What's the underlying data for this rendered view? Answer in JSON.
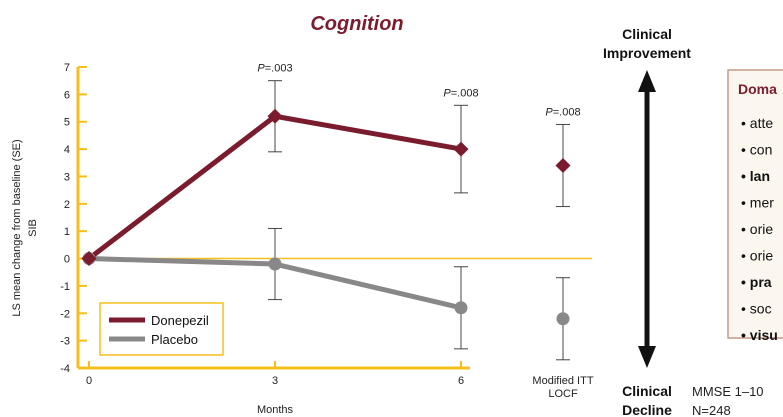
{
  "chart_data": {
    "type": "line",
    "title": "Cognition",
    "ylabel": "LS mean change from baseline (SE) SIB",
    "ylabel_lines": [
      "LS mean change from baseline (SE)",
      "SIB"
    ],
    "xlabel": "Months",
    "ylim": [
      -4,
      7
    ],
    "yticks": [
      -4,
      -3,
      -2,
      -1,
      0,
      1,
      2,
      3,
      4,
      5,
      6,
      7
    ],
    "x_categories": [
      "0",
      "3",
      "6"
    ],
    "extra_category": [
      "Modified ITT",
      "LOCF"
    ],
    "series": [
      {
        "name": "Donepezil",
        "color": "#7b1c2e",
        "marker": "diamond",
        "points": [
          {
            "x": "0",
            "y": 0
          },
          {
            "x": "3",
            "y": 5.2,
            "err_low": 3.9,
            "err_high": 6.5
          },
          {
            "x": "6",
            "y": 4.0,
            "err_low": 2.4,
            "err_high": 5.6
          }
        ],
        "locf": {
          "y": 3.4,
          "err_low": 1.9,
          "err_high": 4.9
        }
      },
      {
        "name": "Placebo",
        "color": "#888888",
        "marker": "circle",
        "points": [
          {
            "x": "0",
            "y": 0
          },
          {
            "x": "3",
            "y": -0.2,
            "err_low": -1.5,
            "err_high": 1.1
          },
          {
            "x": "6",
            "y": -1.8,
            "err_low": -3.3,
            "err_high": -0.3
          }
        ],
        "locf": {
          "y": -2.2,
          "err_low": -3.7,
          "err_high": -0.7
        }
      }
    ],
    "annotations": [
      {
        "at": "3",
        "prefix": "P",
        "text": "=.003"
      },
      {
        "at": "6",
        "prefix": "P",
        "text": "=.008"
      },
      {
        "at": "locf",
        "prefix": "P",
        "text": "=.008"
      }
    ],
    "legend_position": "bottom-left"
  },
  "arrow": {
    "top_label": [
      "Clinical",
      "Improvement"
    ],
    "bottom_label": [
      "Clinical",
      "Decline"
    ]
  },
  "footer": {
    "mmse": "MMSE 1–10",
    "n": "N=248"
  },
  "domains_box": {
    "title": "Doma",
    "items": [
      {
        "text": "atte",
        "bold": false
      },
      {
        "text": "con",
        "bold": false
      },
      {
        "text": "lan",
        "bold": true
      },
      {
        "text": "mer",
        "bold": false
      },
      {
        "text": "orie",
        "bold": false
      },
      {
        "text": "orie",
        "bold": false
      },
      {
        "text": "pra",
        "bold": true
      },
      {
        "text": "soc",
        "bold": false
      },
      {
        "text": "visu",
        "bold": true
      }
    ]
  },
  "colors": {
    "axis": "#f5bf1d",
    "box_border": "#c59a8a",
    "box_bg": "#fbf6ee",
    "donepezil": "#7b1c2e",
    "placebo": "#888888"
  }
}
